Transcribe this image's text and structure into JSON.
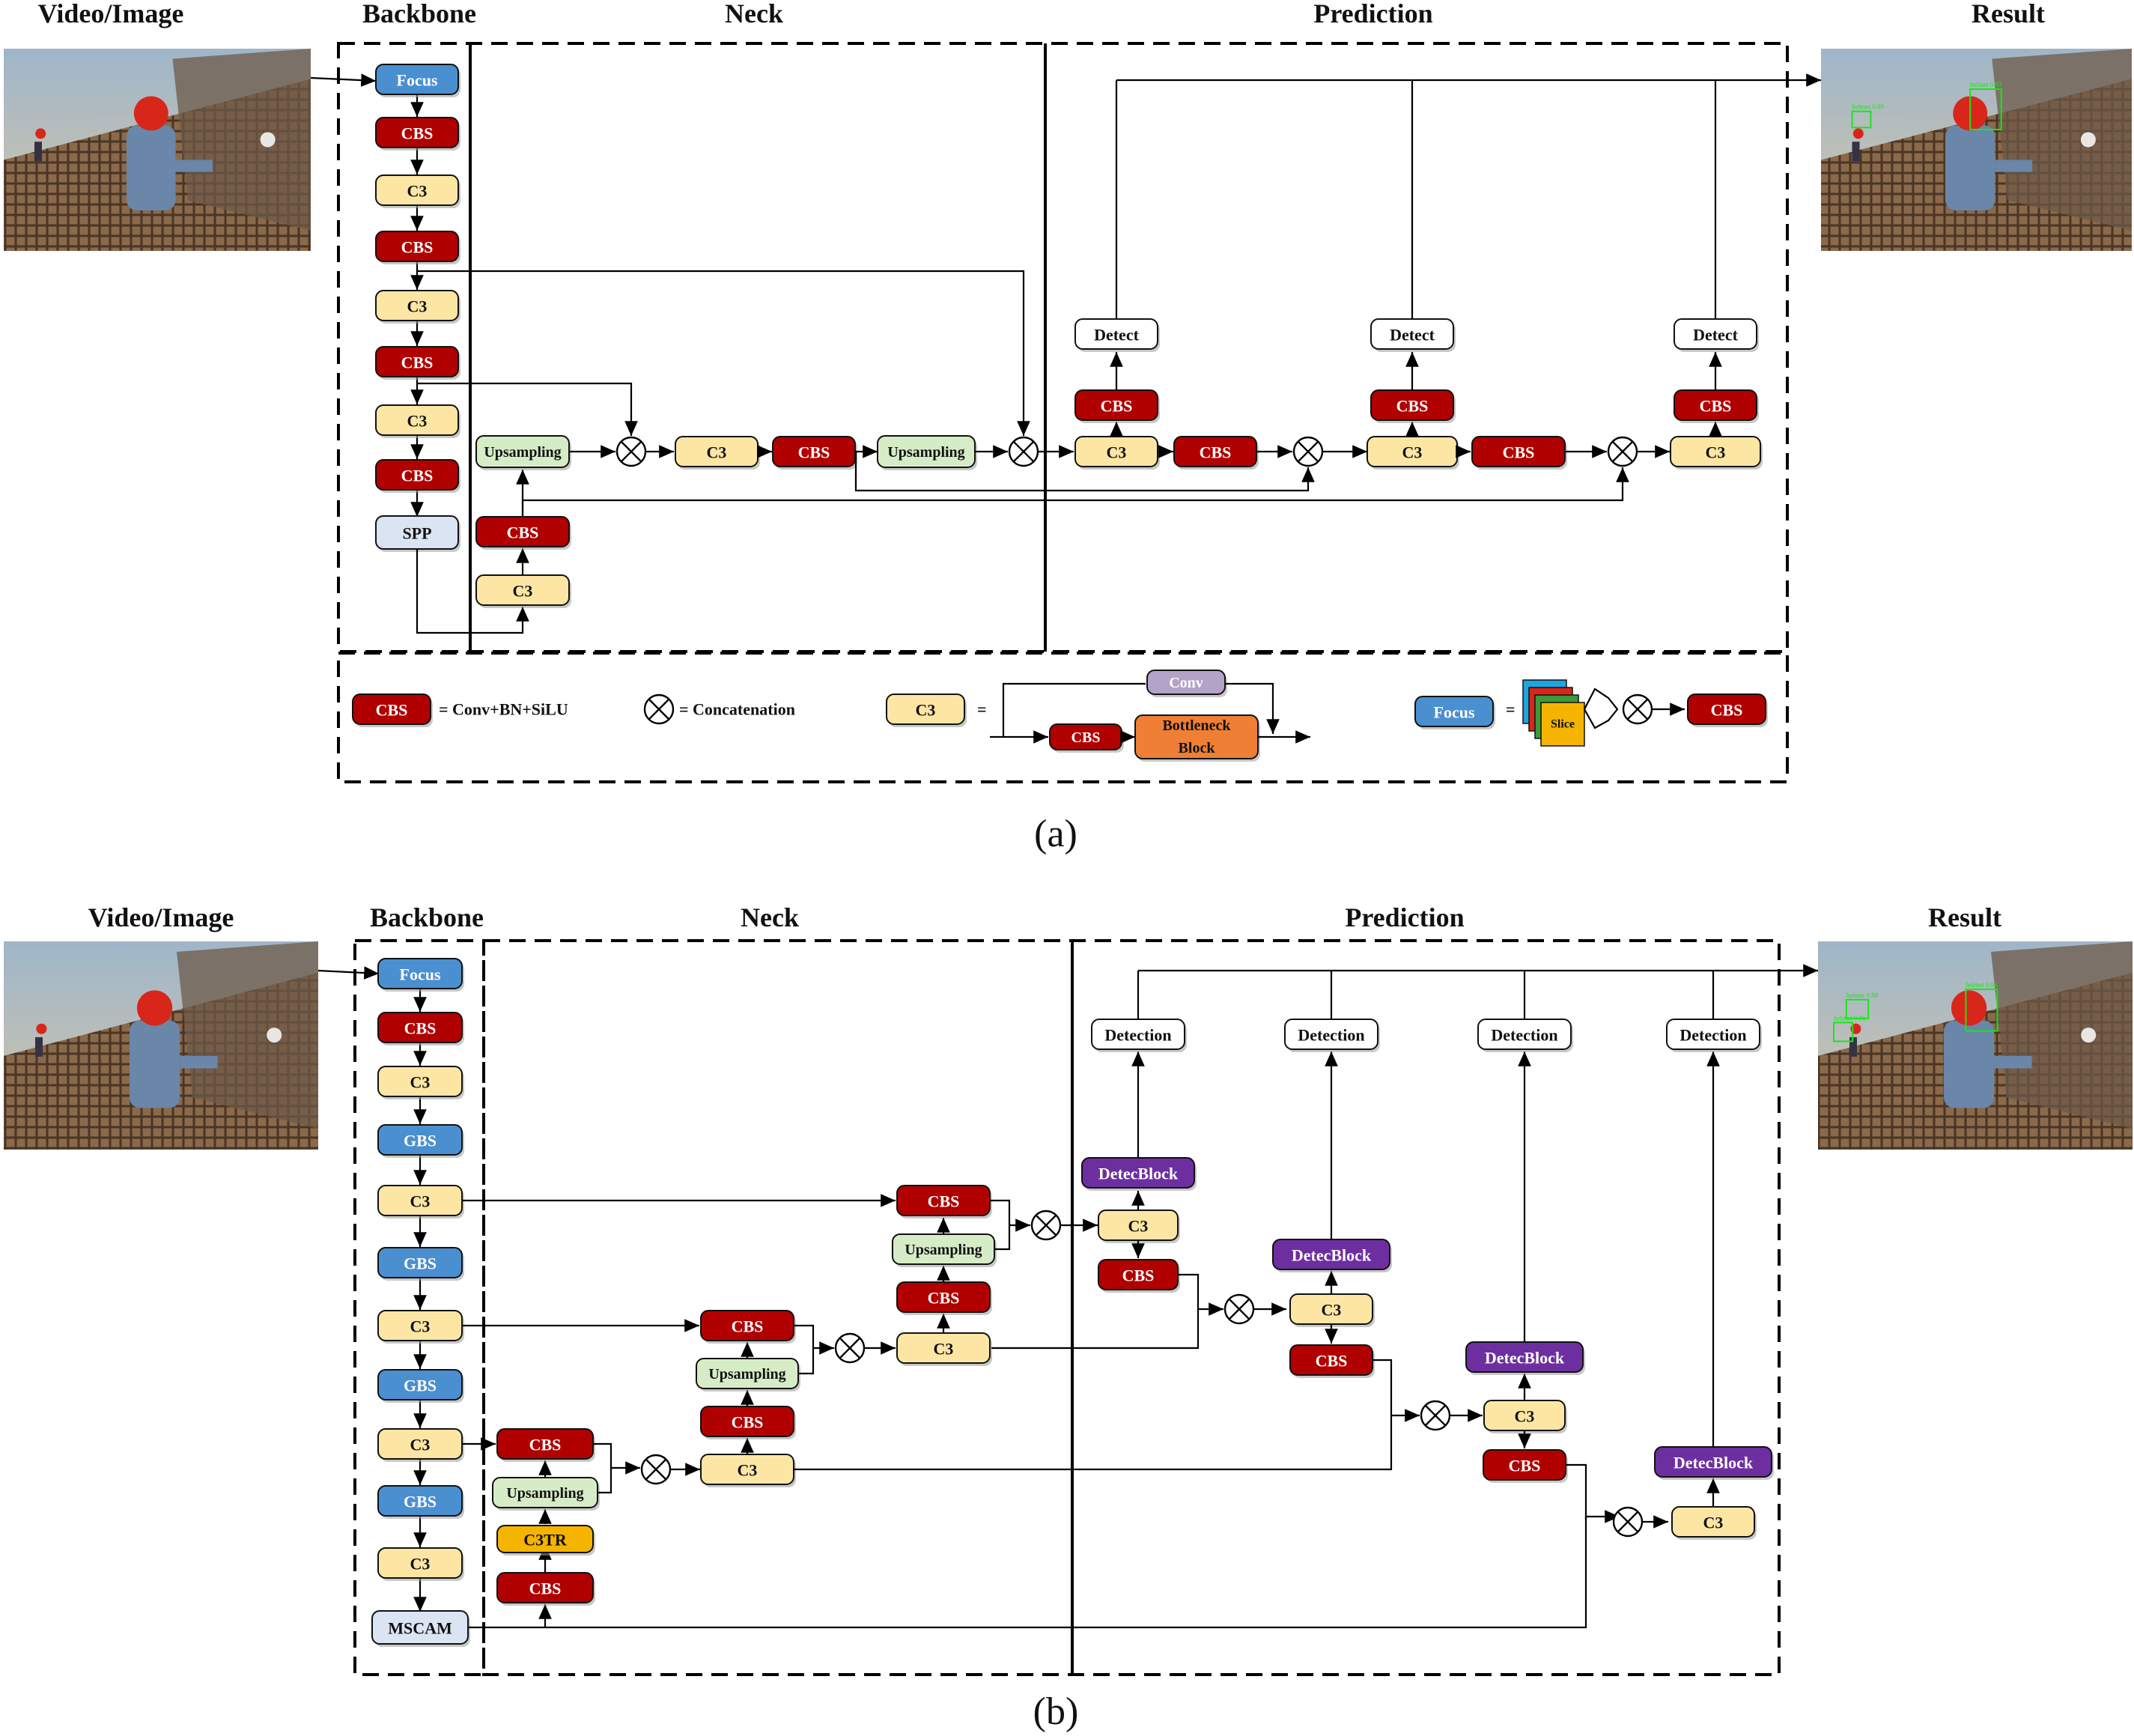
{
  "colors": {
    "cbs": "#b00000",
    "c3": "#fde6a4",
    "focus": "#4a8fd0",
    "gbs": "#4a8fd0",
    "upsampling": "#d6ecc6",
    "spp": "#dbe4f3",
    "mscam": "#dbe4f3",
    "detect": "#ffffff",
    "detecblock": "#6d2fa0",
    "c3tr": "#f5b400",
    "conv": "#b4a3c8",
    "bottleneck": "#ee7f35"
  },
  "panel_a": {
    "caption": "(a)",
    "headers": {
      "input": "Video/Image",
      "backbone": "Backbone",
      "neck": "Neck",
      "prediction": "Prediction",
      "result": "Result"
    },
    "blocks": {
      "focus": "Focus",
      "cbs": "CBS",
      "c3": "C3",
      "spp": "SPP",
      "upsampling": "Upsampling",
      "detect": "Detect"
    },
    "legend": {
      "cbs": "CBS",
      "cbs_def": "= Conv+BN+SiLU",
      "concat_def": "= Concatenation",
      "c3": "C3",
      "equals": "=",
      "conv": "Conv",
      "cbs_inner": "CBS",
      "bottleneck_line1": "Bottleneck",
      "bottleneck_line2": "Block",
      "focus": "Focus",
      "slice": "Slice",
      "cbs_out": "CBS"
    }
  },
  "panel_b": {
    "caption": "(b)",
    "headers": {
      "input": "Video/Image",
      "backbone": "Backbone",
      "neck": "Neck",
      "prediction": "Prediction",
      "result": "Result"
    },
    "blocks": {
      "focus": "Focus",
      "cbs": "CBS",
      "c3": "C3",
      "gbs": "GBS",
      "mscam": "MSCAM",
      "upsampling": "Upsampling",
      "c3tr": "C3TR",
      "detection": "Detection",
      "detecblock": "DetecBlock"
    }
  },
  "photo_labels": {
    "a": [
      "helmet 0.89",
      "helmet 0.93"
    ],
    "b": [
      "helmet 0.88",
      "helmet 0.86",
      "helmet 0.96"
    ]
  }
}
